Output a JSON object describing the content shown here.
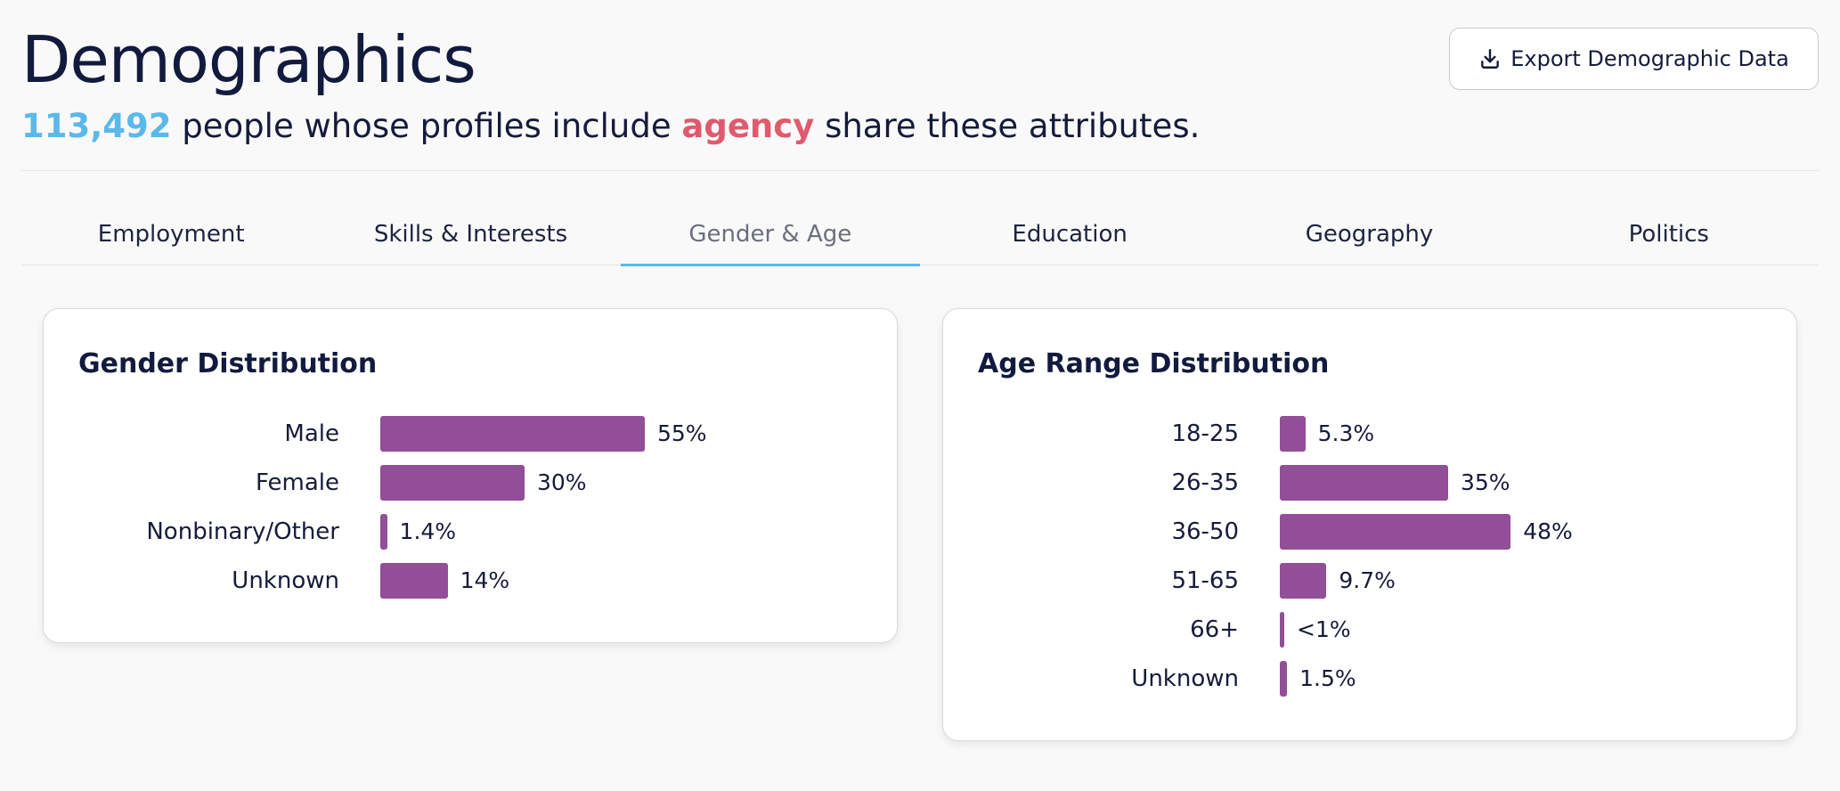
{
  "header": {
    "title": "Demographics",
    "count": "113,492",
    "text_before_keyword": "people whose profiles include",
    "keyword": "agency",
    "text_after_keyword": "share these attributes.",
    "export_label": "Export Demographic Data"
  },
  "tabs": [
    {
      "label": "Employment",
      "active": false
    },
    {
      "label": "Skills & Interests",
      "active": false
    },
    {
      "label": "Gender & Age",
      "active": true
    },
    {
      "label": "Education",
      "active": false
    },
    {
      "label": "Geography",
      "active": false
    },
    {
      "label": "Politics",
      "active": false
    }
  ],
  "colors": {
    "accent": "#5bb8ea",
    "keyword": "#e05a6d",
    "bar": "#924e97"
  },
  "icons": {
    "export": "download-icon"
  },
  "chart_data": [
    {
      "type": "bar",
      "orientation": "horizontal",
      "title": "Gender Distribution",
      "categories": [
        "Male",
        "Female",
        "Nonbinary/Other",
        "Unknown"
      ],
      "values": [
        55,
        30,
        1.4,
        14
      ],
      "labels": [
        "55%",
        "30%",
        "1.4%",
        "14%"
      ]
    },
    {
      "type": "bar",
      "orientation": "horizontal",
      "title": "Age Range Distribution",
      "categories": [
        "18-25",
        "26-35",
        "36-50",
        "51-65",
        "66+",
        "Unknown"
      ],
      "values": [
        5.3,
        35,
        48,
        9.7,
        0.5,
        1.5
      ],
      "labels": [
        "5.3%",
        "35%",
        "48%",
        "9.7%",
        "<1%",
        "1.5%"
      ]
    }
  ]
}
